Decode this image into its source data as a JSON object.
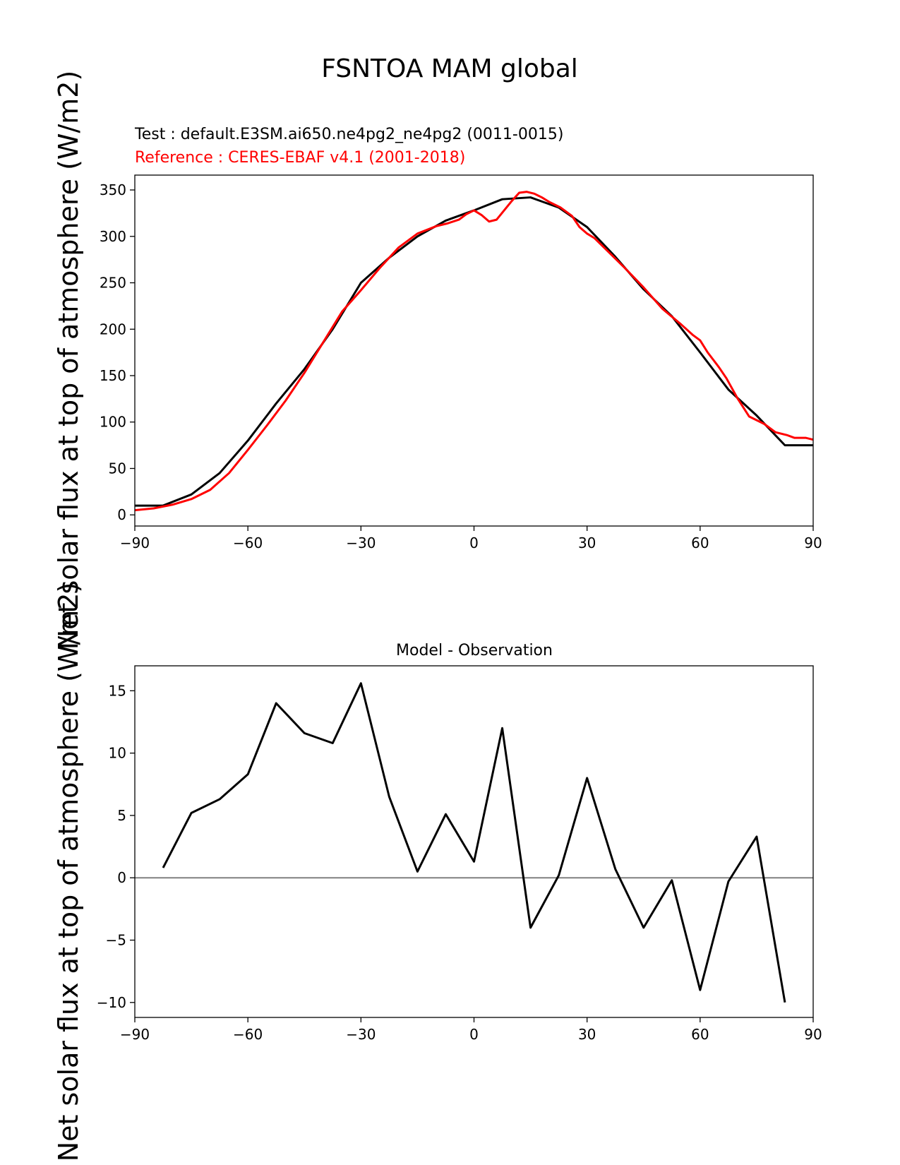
{
  "figure": {
    "title": "FSNTOA MAM global",
    "ylabel": "Net solar flux at top of atmosphere (W/m2)"
  },
  "chart_data": [
    {
      "type": "line",
      "title": "",
      "subtitle_test": "Test : default.E3SM.ai650.ne4pg2_ne4pg2 (0011-0015)",
      "subtitle_reference": "Reference : CERES-EBAF v4.1 (2001-2018)",
      "xlabel": "",
      "ylabel": "Net solar flux at top of atmosphere (W/m2)",
      "xlim": [
        -90,
        90
      ],
      "ylim": [
        -12,
        366
      ],
      "xticks": [
        -90,
        -60,
        -30,
        0,
        30,
        60,
        90
      ],
      "yticks": [
        0,
        50,
        100,
        150,
        200,
        250,
        300,
        350
      ],
      "grid": false,
      "series": [
        {
          "role": "test",
          "color": "#000000",
          "x": [
            -90,
            -82.5,
            -75,
            -67.5,
            -60,
            -52.5,
            -45,
            -37.5,
            -30,
            -22.5,
            -15,
            -7.5,
            0,
            7.5,
            15,
            22.5,
            30,
            37.5,
            45,
            52.5,
            60,
            67.5,
            75,
            82.5,
            90
          ],
          "y": [
            10,
            10,
            22,
            45,
            80,
            120,
            157,
            200,
            250,
            277,
            300,
            317,
            328,
            340,
            342,
            331,
            310,
            278,
            243,
            214,
            175,
            135,
            107,
            75,
            75
          ]
        },
        {
          "role": "reference",
          "color": "#ff0000",
          "x": [
            -90,
            -85,
            -80,
            -75,
            -70,
            -65,
            -60,
            -55,
            -50,
            -45,
            -40,
            -35,
            -30,
            -25,
            -20,
            -15,
            -10,
            -7,
            -4,
            -2,
            0,
            2,
            4,
            6,
            8,
            10,
            12,
            14,
            16,
            18,
            20,
            23,
            26,
            28,
            30,
            32,
            35,
            40,
            45,
            50,
            55,
            58,
            60,
            62,
            65,
            67,
            70,
            73,
            77,
            80,
            83,
            85,
            88,
            90
          ],
          "y": [
            5,
            7,
            11,
            17,
            27,
            45,
            70,
            96,
            123,
            153,
            186,
            219,
            242,
            266,
            288,
            303,
            311,
            314,
            318,
            324,
            328,
            323,
            316,
            318,
            328,
            338,
            347,
            348,
            346,
            342,
            337,
            331,
            322,
            310,
            303,
            298,
            286,
            266,
            245,
            222,
            205,
            194,
            188,
            175,
            159,
            147,
            125,
            106,
            98,
            89,
            86,
            83,
            83,
            81
          ]
        }
      ]
    },
    {
      "type": "line",
      "title": "Model - Observation",
      "xlabel": "",
      "ylabel": "Net solar flux at top of atmosphere (W/m2)",
      "xlim": [
        -90,
        90
      ],
      "ylim": [
        -11.2,
        17
      ],
      "xticks": [
        -90,
        -60,
        -30,
        0,
        30,
        60,
        90
      ],
      "yticks": [
        -10,
        -5,
        0,
        5,
        10,
        15
      ],
      "grid": false,
      "zero_line_color": "#808080",
      "series": [
        {
          "role": "difference",
          "color": "#000000",
          "x": [
            -82.5,
            -75,
            -67.5,
            -60,
            -52.5,
            -45,
            -37.5,
            -30,
            -22.5,
            -15,
            -7.5,
            0,
            7.5,
            15,
            22.5,
            30,
            37.5,
            45,
            52.5,
            60,
            67.5,
            75,
            82.5
          ],
          "y": [
            0.8,
            5.2,
            6.3,
            8.3,
            14,
            11.6,
            10.8,
            15.6,
            6.5,
            0.5,
            5.1,
            1.3,
            12,
            -4,
            0.2,
            8,
            0.7,
            -4,
            -0.2,
            -9,
            -0.3,
            3.3,
            -10
          ]
        }
      ]
    }
  ]
}
